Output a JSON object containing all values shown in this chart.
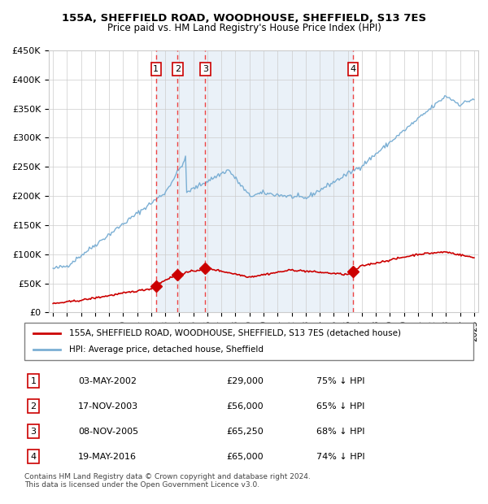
{
  "title1": "155A, SHEFFIELD ROAD, WOODHOUSE, SHEFFIELD, S13 7ES",
  "title2": "Price paid vs. HM Land Registry's House Price Index (HPI)",
  "ylabel_ticks": [
    "£0",
    "£50K",
    "£100K",
    "£150K",
    "£200K",
    "£250K",
    "£300K",
    "£350K",
    "£400K",
    "£450K"
  ],
  "ytick_values": [
    0,
    50000,
    100000,
    150000,
    200000,
    250000,
    300000,
    350000,
    400000,
    450000
  ],
  "ylim": [
    0,
    450000
  ],
  "year_start": 1995,
  "year_end": 2025,
  "bg_color": "#e8f0f8",
  "plot_bg": "#f0f4fb",
  "grid_color": "#cccccc",
  "hpi_color": "#7bafd4",
  "price_color": "#cc0000",
  "sale_marker_color": "#cc0000",
  "dashed_line_color": "#ee4444",
  "sales": [
    {
      "label": "1",
      "date": 2002.34,
      "price": 29000,
      "desc": "03-MAY-2002",
      "amount": "£29,000",
      "pct": "75% ↓ HPI"
    },
    {
      "label": "2",
      "date": 2003.88,
      "price": 56000,
      "desc": "17-NOV-2003",
      "amount": "£56,000",
      "pct": "65% ↓ HPI"
    },
    {
      "label": "3",
      "date": 2005.85,
      "price": 65250,
      "desc": "08-NOV-2005",
      "amount": "£65,250",
      "pct": "68% ↓ HPI"
    },
    {
      "label": "4",
      "date": 2016.38,
      "price": 65000,
      "desc": "19-MAY-2016",
      "amount": "£65,000",
      "pct": "74% ↓ HPI"
    }
  ],
  "legend_label_red": "155A, SHEFFIELD ROAD, WOODHOUSE, SHEFFIELD, S13 7ES (detached house)",
  "legend_label_blue": "HPI: Average price, detached house, Sheffield",
  "footer": "Contains HM Land Registry data © Crown copyright and database right 2024.\nThis data is licensed under the Open Government Licence v3.0.",
  "table_rows": [
    [
      "1",
      "03-MAY-2002",
      "£29,000",
      "75% ↓ HPI"
    ],
    [
      "2",
      "17-NOV-2003",
      "£56,000",
      "65% ↓ HPI"
    ],
    [
      "3",
      "08-NOV-2005",
      "£65,250",
      "68% ↓ HPI"
    ],
    [
      "4",
      "19-MAY-2016",
      "£65,000",
      "74% ↓ HPI"
    ]
  ]
}
